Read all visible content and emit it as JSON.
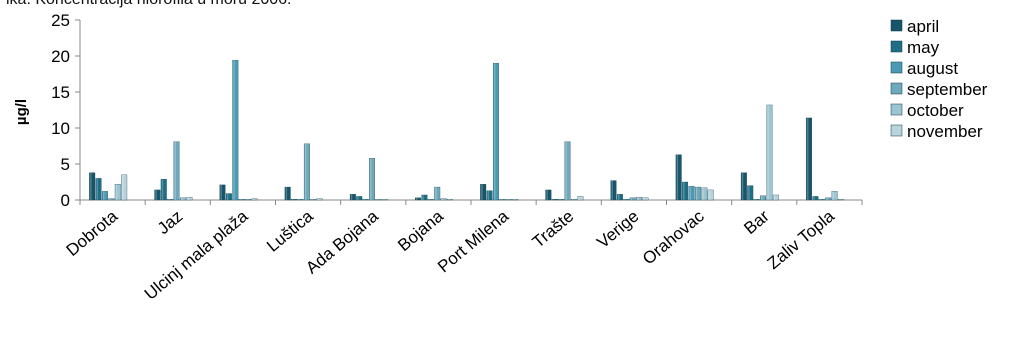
{
  "page": {
    "title": "ika: Koncentracija hlorofila u moru 2006."
  },
  "chart_data": {
    "type": "bar",
    "title": "",
    "xlabel": "",
    "ylabel": "µg/l",
    "ylim": [
      0,
      25
    ],
    "yticks": [
      0,
      5,
      10,
      15,
      20,
      25
    ],
    "grid": false,
    "legend_position": "right",
    "categories": [
      "Dobrota",
      "Jaz",
      "Ulcinj mala plaža",
      "Luštica",
      "Ada Bojana",
      "Bojana",
      "Port Milena",
      "Trašte",
      "Verige",
      "Orahovac",
      "Bar",
      "Zaliv Topla"
    ],
    "series": [
      {
        "name": "april",
        "color": "#17556a",
        "values": [
          3.8,
          1.4,
          2.1,
          1.8,
          0.8,
          0.3,
          2.2,
          1.4,
          2.7,
          6.3,
          3.8,
          11.4
        ]
      },
      {
        "name": "may",
        "color": "#1f6e85",
        "values": [
          3.0,
          2.9,
          0.9,
          0.1,
          0.5,
          0.7,
          1.3,
          0.1,
          0.8,
          2.5,
          2.0,
          0.5
        ]
      },
      {
        "name": "august",
        "color": "#4a9ab3",
        "values": [
          1.2,
          0.1,
          19.4,
          0.1,
          0.1,
          0.1,
          19.0,
          0.1,
          0.1,
          1.9,
          0.1,
          0.1
        ]
      },
      {
        "name": "september",
        "color": "#6ea8bb",
        "values": [
          0.2,
          8.1,
          0.1,
          7.8,
          5.8,
          1.8,
          0.1,
          8.1,
          0.3,
          1.8,
          0.6,
          0.3
        ]
      },
      {
        "name": "october",
        "color": "#9dc4d1",
        "values": [
          2.2,
          0.3,
          0.1,
          0.1,
          0.1,
          0.2,
          0.1,
          0.1,
          0.4,
          1.7,
          13.2,
          1.2
        ]
      },
      {
        "name": "november",
        "color": "#b9d3dc",
        "values": [
          3.5,
          0.4,
          0.2,
          0.2,
          0.1,
          0.1,
          0.1,
          0.5,
          0.3,
          1.4,
          0.7,
          0.1
        ]
      }
    ]
  }
}
